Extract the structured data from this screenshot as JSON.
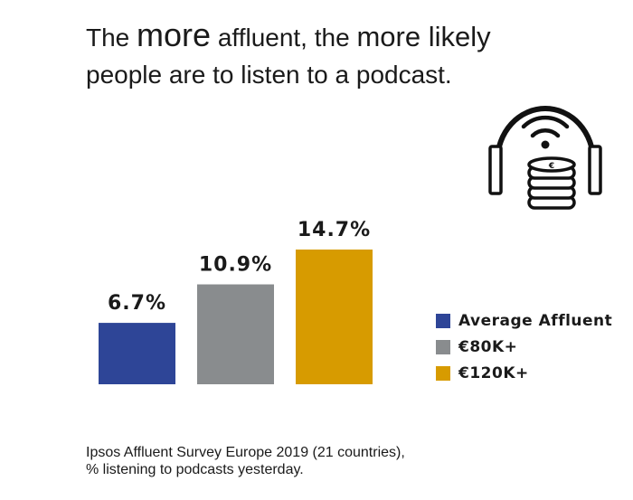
{
  "title": {
    "w1": "The",
    "w2": "more",
    "w3": "affluent, the",
    "w4": "more likely",
    "line2": "people are to listen to a podcast."
  },
  "source": {
    "line1": "Ipsos Affluent Survey Europe 2019 (21 countries),",
    "line2": "% listening to podcasts yesterday."
  },
  "icon": "headphones-coins-icon",
  "chart_data": {
    "type": "bar",
    "title": "The more affluent, the more likely people are to listen to a podcast.",
    "categories": [
      "Average Affluent",
      "€80K+",
      "€120K+"
    ],
    "values": [
      6.7,
      10.9,
      14.7
    ],
    "value_labels": [
      "6.7%",
      "10.9%",
      "14.7%"
    ],
    "colors": [
      "#2e4597",
      "#898c8e",
      "#d79b00"
    ],
    "ylim": [
      0,
      14.7
    ],
    "grid": false,
    "legend": "right",
    "xlabel": "",
    "ylabel": ""
  }
}
